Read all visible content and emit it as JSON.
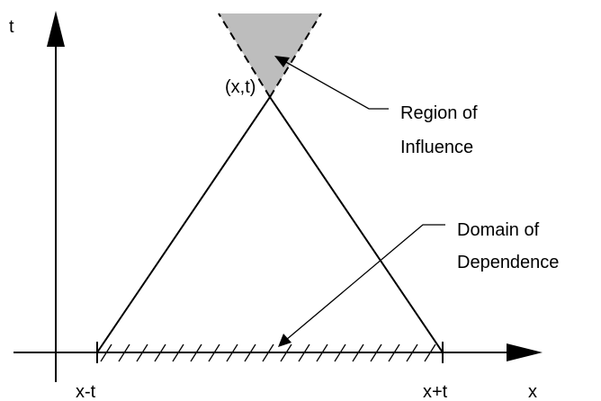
{
  "axes": {
    "vertical_label": "t",
    "horizontal_label": "x"
  },
  "point_label": "(x,t)",
  "ticks": {
    "left": "x-t",
    "right": "x+t"
  },
  "region_of_influence": {
    "lines": [
      "Region of",
      "Influence"
    ]
  },
  "domain_of_dependence": {
    "lines": [
      "Domain of",
      "Dependence"
    ]
  }
}
